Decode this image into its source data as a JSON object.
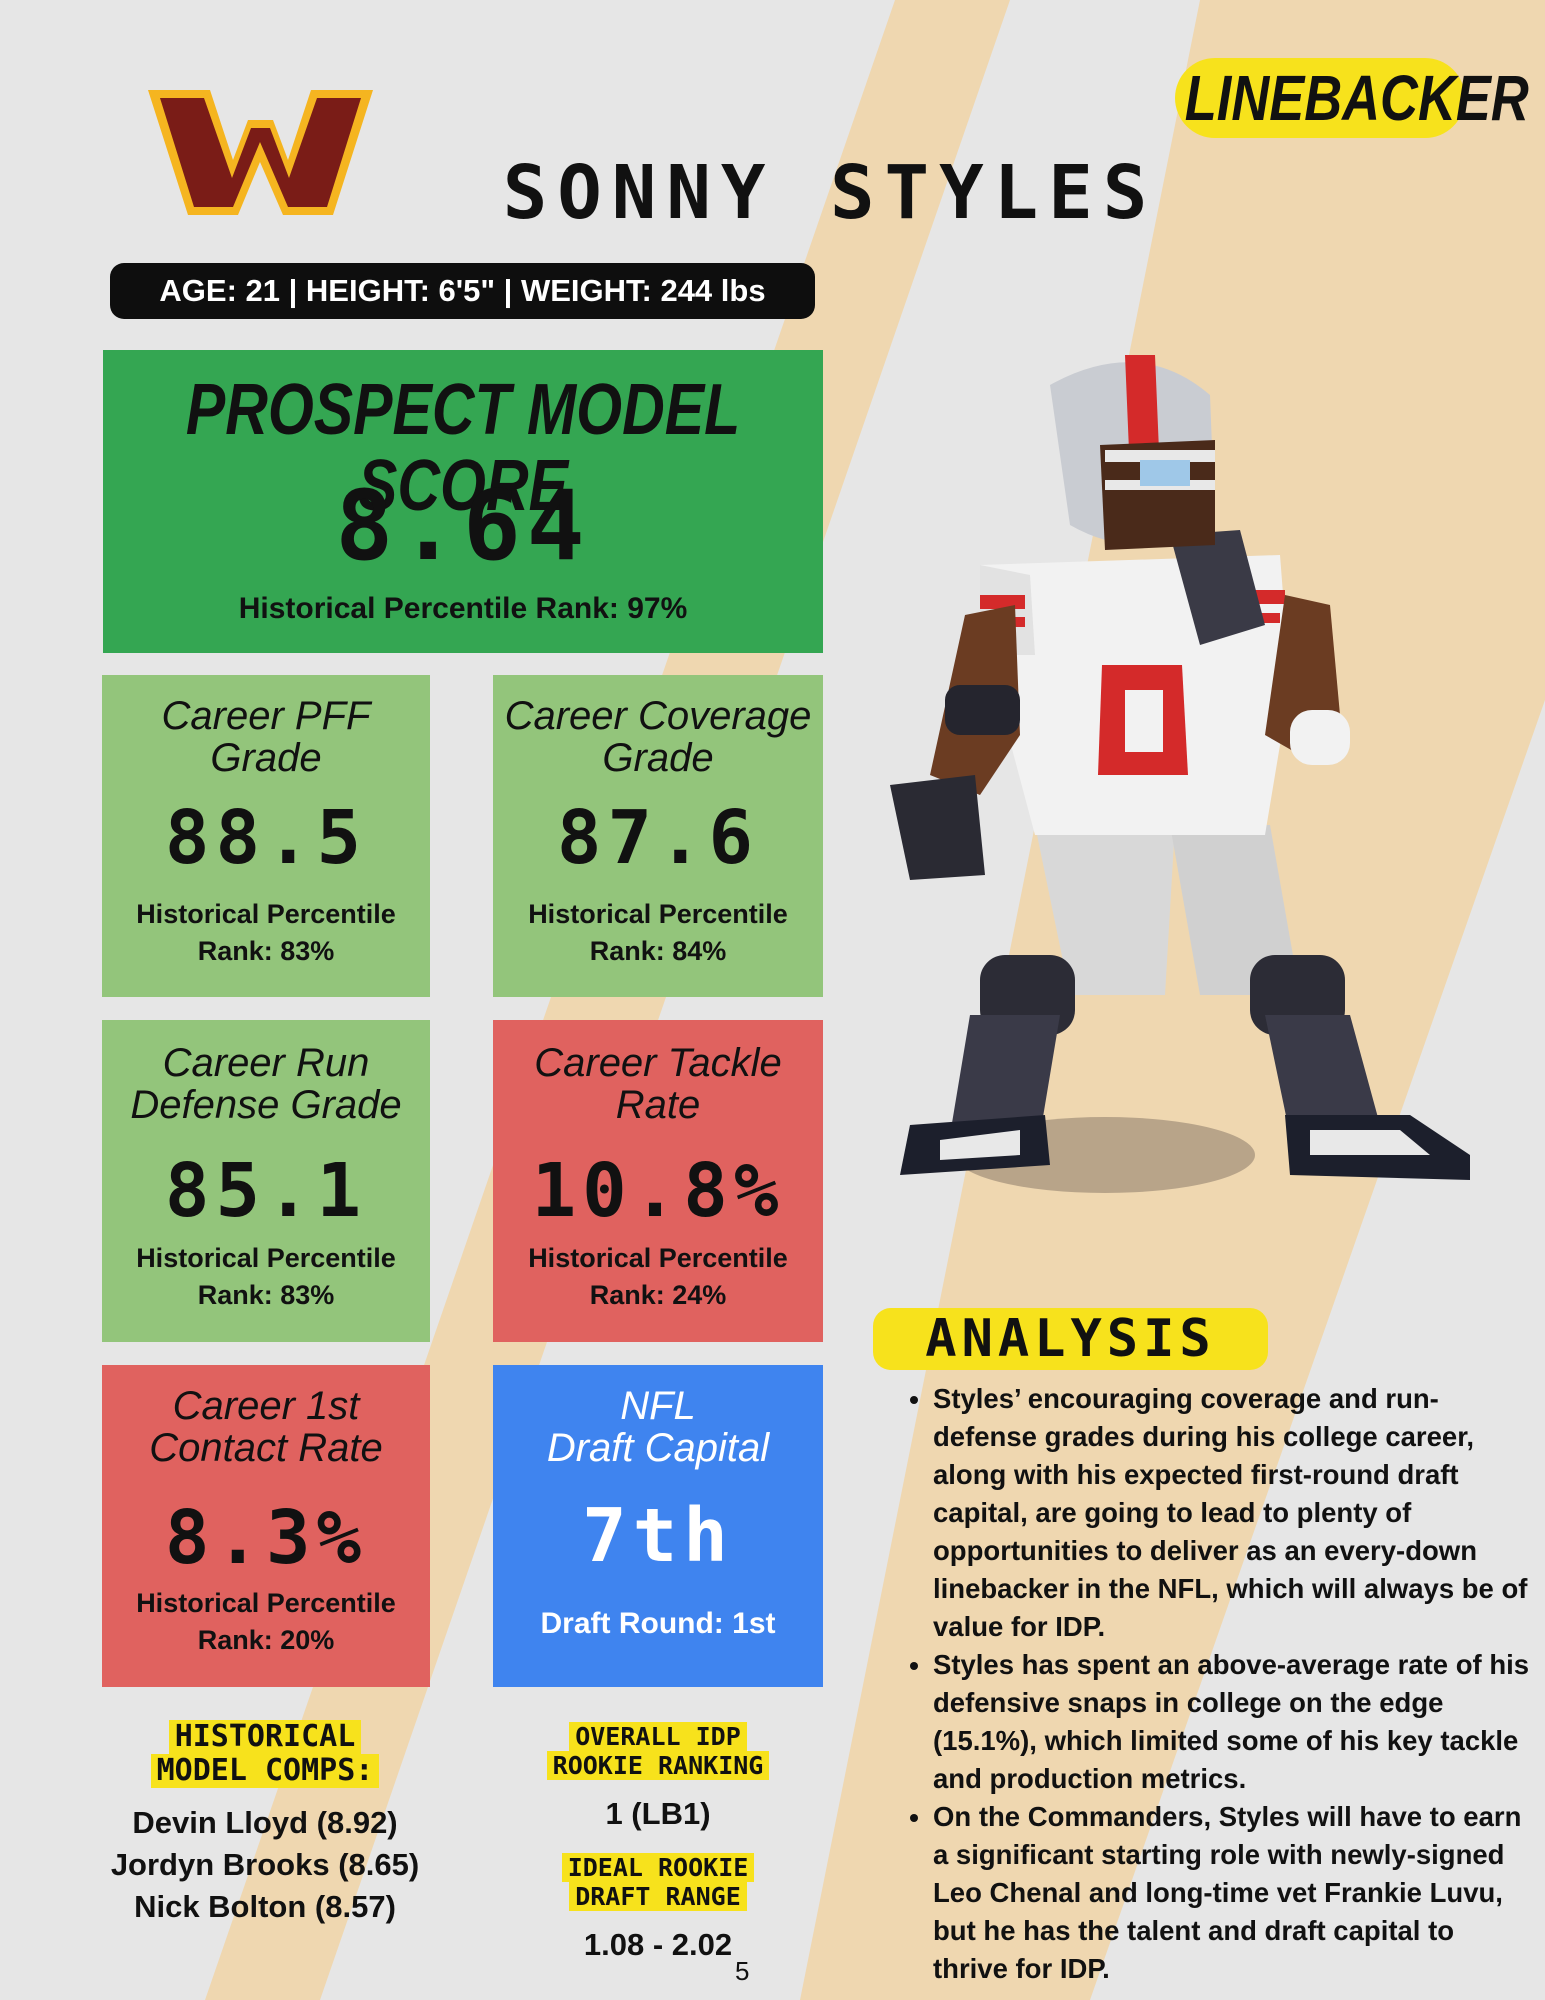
{
  "page": {
    "position_label": "LINEBACKER",
    "player_name": "SONNY STYLES",
    "bio_line": "AGE: 21 | HEIGHT: 6'5\" | WEIGHT: 244 lbs",
    "page_number": "5",
    "logo_icon": "commanders-w-logo",
    "player_image": "pixel-art-linebacker-number-0"
  },
  "colors": {
    "background": "#e6e6e6",
    "stripe": "#efd7b0",
    "dark_green": "#34a652",
    "light_green": "#93c57b",
    "red": "#e0625f",
    "blue": "#3f84ef",
    "highlight_yellow": "#f7e21c",
    "logo_burgundy": "#7a1c17",
    "logo_gold": "#f5b520"
  },
  "prospect_score": {
    "title": "PROSPECT MODEL SCORE",
    "value": "8.64",
    "percentile": "Historical  Percentile Rank: 97%"
  },
  "stats": [
    {
      "title_line1": "Career PFF",
      "title_line2": "Grade",
      "value": "88.5",
      "pct_line1": "Historical  Percentile",
      "pct_line2": "Rank: 83%"
    },
    {
      "title_line1": "Career Coverage",
      "title_line2": "Grade",
      "value": "87.6",
      "pct_line1": "Historical  Percentile",
      "pct_line2": "Rank: 84%"
    },
    {
      "title_line1": "Career Run",
      "title_line2": "Defense Grade",
      "value": "85.1",
      "pct_line1": "Historical  Percentile",
      "pct_line2": "Rank: 83%"
    },
    {
      "title_line1": "Career Tackle",
      "title_line2": "Rate",
      "value": "10.8%",
      "pct_line1": "Historical  Percentile",
      "pct_line2": "Rank: 24%"
    },
    {
      "title_line1": "Career 1st",
      "title_line2": "Contact Rate",
      "value": "8.3%",
      "pct_line1": "Historical  Percentile",
      "pct_line2": "Rank: 20%"
    },
    {
      "title_line1": "NFL",
      "title_line2": "Draft Capital",
      "value": "7th",
      "pct_line1": "Draft Round: 1st",
      "pct_line2": ""
    }
  ],
  "comps": {
    "header_line1": "HISTORICAL",
    "header_line2": "MODEL COMPS:",
    "items": [
      "Devin Lloyd (8.92)",
      "Jordyn Brooks (8.65)",
      "Nick Bolton (8.57)"
    ]
  },
  "ranking": {
    "header_line1": "OVERALL IDP",
    "header_line2": "ROOKIE RANKING",
    "value": "1 (LB1)"
  },
  "draft_range": {
    "header_line1": "IDEAL ROOKIE",
    "header_line2": "DRAFT RANGE",
    "value": "1.08 - 2.02"
  },
  "analysis": {
    "header": "ANALYSIS",
    "bullets": [
      "Styles’ encouraging coverage and run-defense grades during his college career, along with his expected first-round draft capital, are going to lead to plenty of opportunities to deliver as an every-down linebacker in the NFL, which will always be of value for IDP.",
      "Styles has spent an above-average rate of his defensive snaps in college on the edge (15.1%), which limited some of his key tackle and production metrics.",
      "On the Commanders, Styles will have to earn a significant starting role with newly-signed Leo Chenal and long-time vet Frankie Luvu, but he has the talent and draft capital to thrive for IDP."
    ]
  }
}
